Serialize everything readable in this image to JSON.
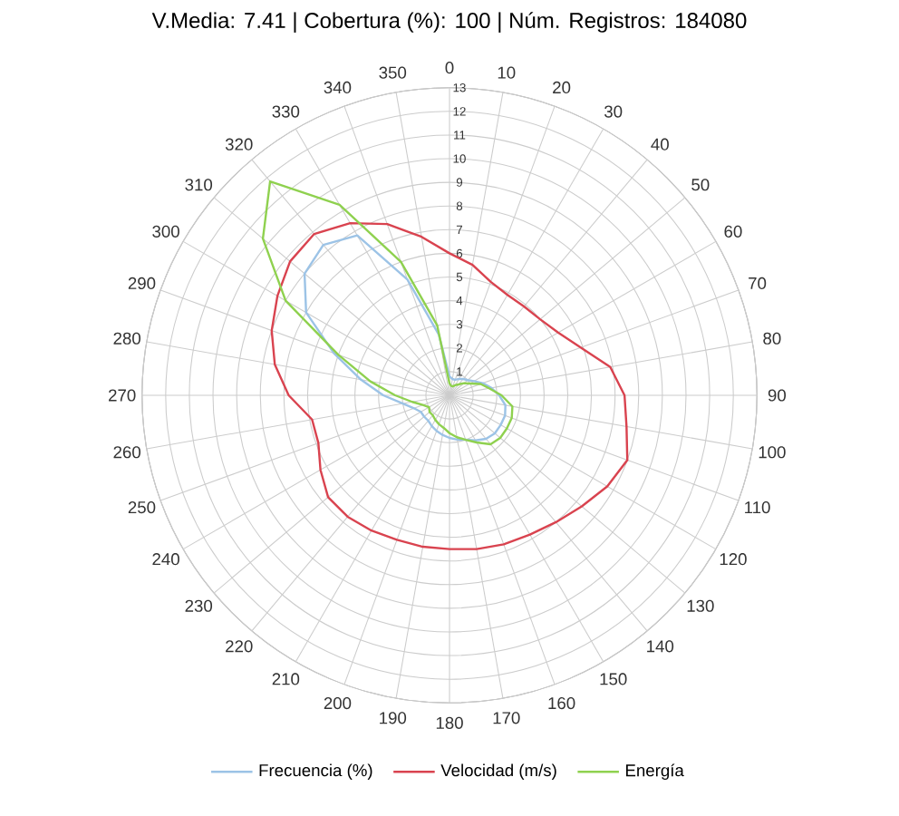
{
  "chart_data": {
    "type": "radar",
    "title": "V.Media: 7.41 | Cobertura (%): 100 | Núm. Registros: 184080",
    "categories": [
      "0",
      "10",
      "20",
      "30",
      "40",
      "50",
      "60",
      "70",
      "80",
      "90",
      "100",
      "110",
      "120",
      "130",
      "140",
      "150",
      "160",
      "170",
      "180",
      "190",
      "200",
      "210",
      "220",
      "230",
      "240",
      "250",
      "260",
      "270",
      "280",
      "290",
      "300",
      "310",
      "320",
      "330",
      "340",
      "350"
    ],
    "series": [
      {
        "name": "Frecuencia (%)",
        "color": "#9cc3e6",
        "values": [
          0.8,
          0.7,
          0.7,
          0.8,
          0.9,
          1.0,
          1.2,
          1.5,
          1.8,
          2.1,
          2.4,
          2.5,
          2.5,
          2.5,
          2.4,
          2.2,
          2.0,
          1.9,
          1.8,
          1.7,
          1.6,
          1.5,
          1.4,
          1.4,
          1.4,
          1.6,
          2.0,
          2.8,
          3.8,
          5.2,
          7.0,
          8.0,
          8.3,
          7.8,
          5.2,
          2.6
        ]
      },
      {
        "name": "Velocidad (m/s)",
        "color": "#d9434f",
        "values": [
          6.0,
          5.6,
          5.1,
          4.9,
          4.9,
          5.0,
          5.3,
          5.9,
          6.9,
          7.4,
          7.6,
          8.0,
          7.7,
          7.3,
          7.0,
          6.8,
          6.7,
          6.6,
          6.5,
          6.5,
          6.5,
          6.6,
          6.7,
          6.7,
          6.3,
          5.9,
          5.9,
          6.8,
          7.5,
          8.0,
          8.4,
          8.8,
          8.9,
          8.4,
          7.7,
          6.8
        ]
      },
      {
        "name": "Energía",
        "color": "#8fd14f",
        "values": [
          0.5,
          0.4,
          0.4,
          0.5,
          0.6,
          0.8,
          1.0,
          1.4,
          1.7,
          2.2,
          2.7,
          2.8,
          2.8,
          2.8,
          2.7,
          2.3,
          2.0,
          1.8,
          1.6,
          1.4,
          1.3,
          1.2,
          1.1,
          1.1,
          1.0,
          1.2,
          1.6,
          2.3,
          3.4,
          5.0,
          8.0,
          10.3,
          11.8,
          9.3,
          6.0,
          3.0
        ]
      }
    ],
    "ylim": [
      0,
      13
    ],
    "yticks": [
      1,
      2,
      3,
      4,
      5,
      6,
      7,
      8,
      9,
      10,
      11,
      12,
      13
    ],
    "grid": true,
    "legend": "bottom"
  }
}
